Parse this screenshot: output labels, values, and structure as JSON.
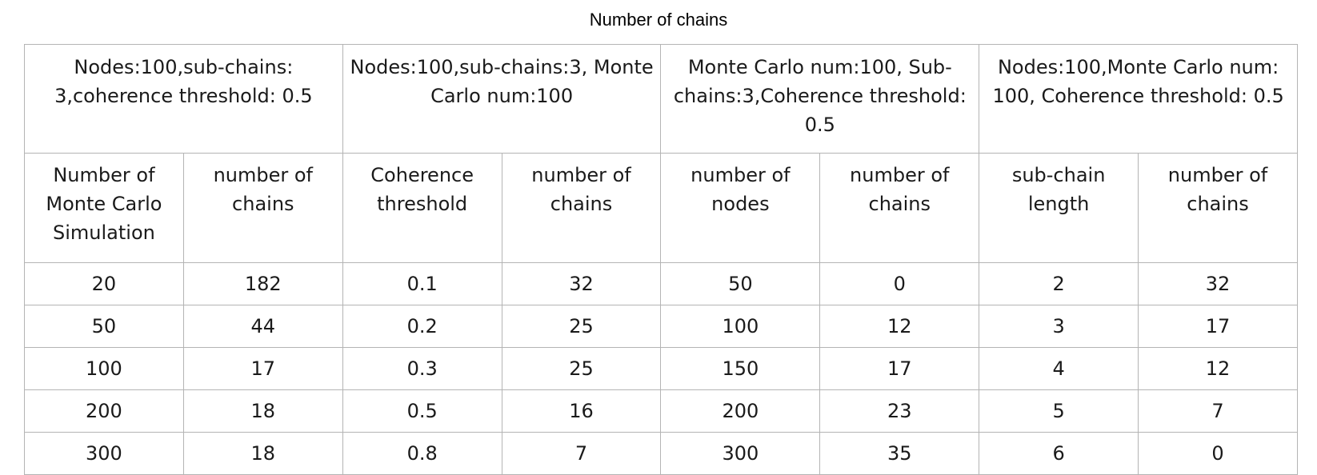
{
  "title": "Number of chains",
  "groups": [
    {
      "header": "Nodes:100,sub-chains: 3,coherence threshold: 0.5",
      "col_a": "Number of Monte Carlo Simulation",
      "col_b": "number of chains"
    },
    {
      "header": "Nodes:100,sub-chains:3, Monte Carlo num:100",
      "col_a": "Coherence threshold",
      "col_b": "number of chains"
    },
    {
      "header": "Monte Carlo num:100, Sub-chains:3,Coherence threshold: 0.5",
      "col_a": "number of nodes",
      "col_b": "number of chains"
    },
    {
      "header": "Nodes:100,Monte Carlo num: 100, Coherence threshold: 0.5",
      "col_a": "sub-chain length",
      "col_b": "number of chains"
    }
  ],
  "rows": [
    [
      "20",
      "182",
      "0.1",
      "32",
      "50",
      "0",
      "2",
      "32"
    ],
    [
      "50",
      "44",
      "0.2",
      "25",
      "100",
      "12",
      "3",
      "17"
    ],
    [
      "100",
      "17",
      "0.3",
      "25",
      "150",
      "17",
      "4",
      "12"
    ],
    [
      "200",
      "18",
      "0.5",
      "16",
      "200",
      "23",
      "5",
      "7"
    ],
    [
      "300",
      "18",
      "0.8",
      "7",
      "300",
      "35",
      "6",
      "0"
    ]
  ]
}
